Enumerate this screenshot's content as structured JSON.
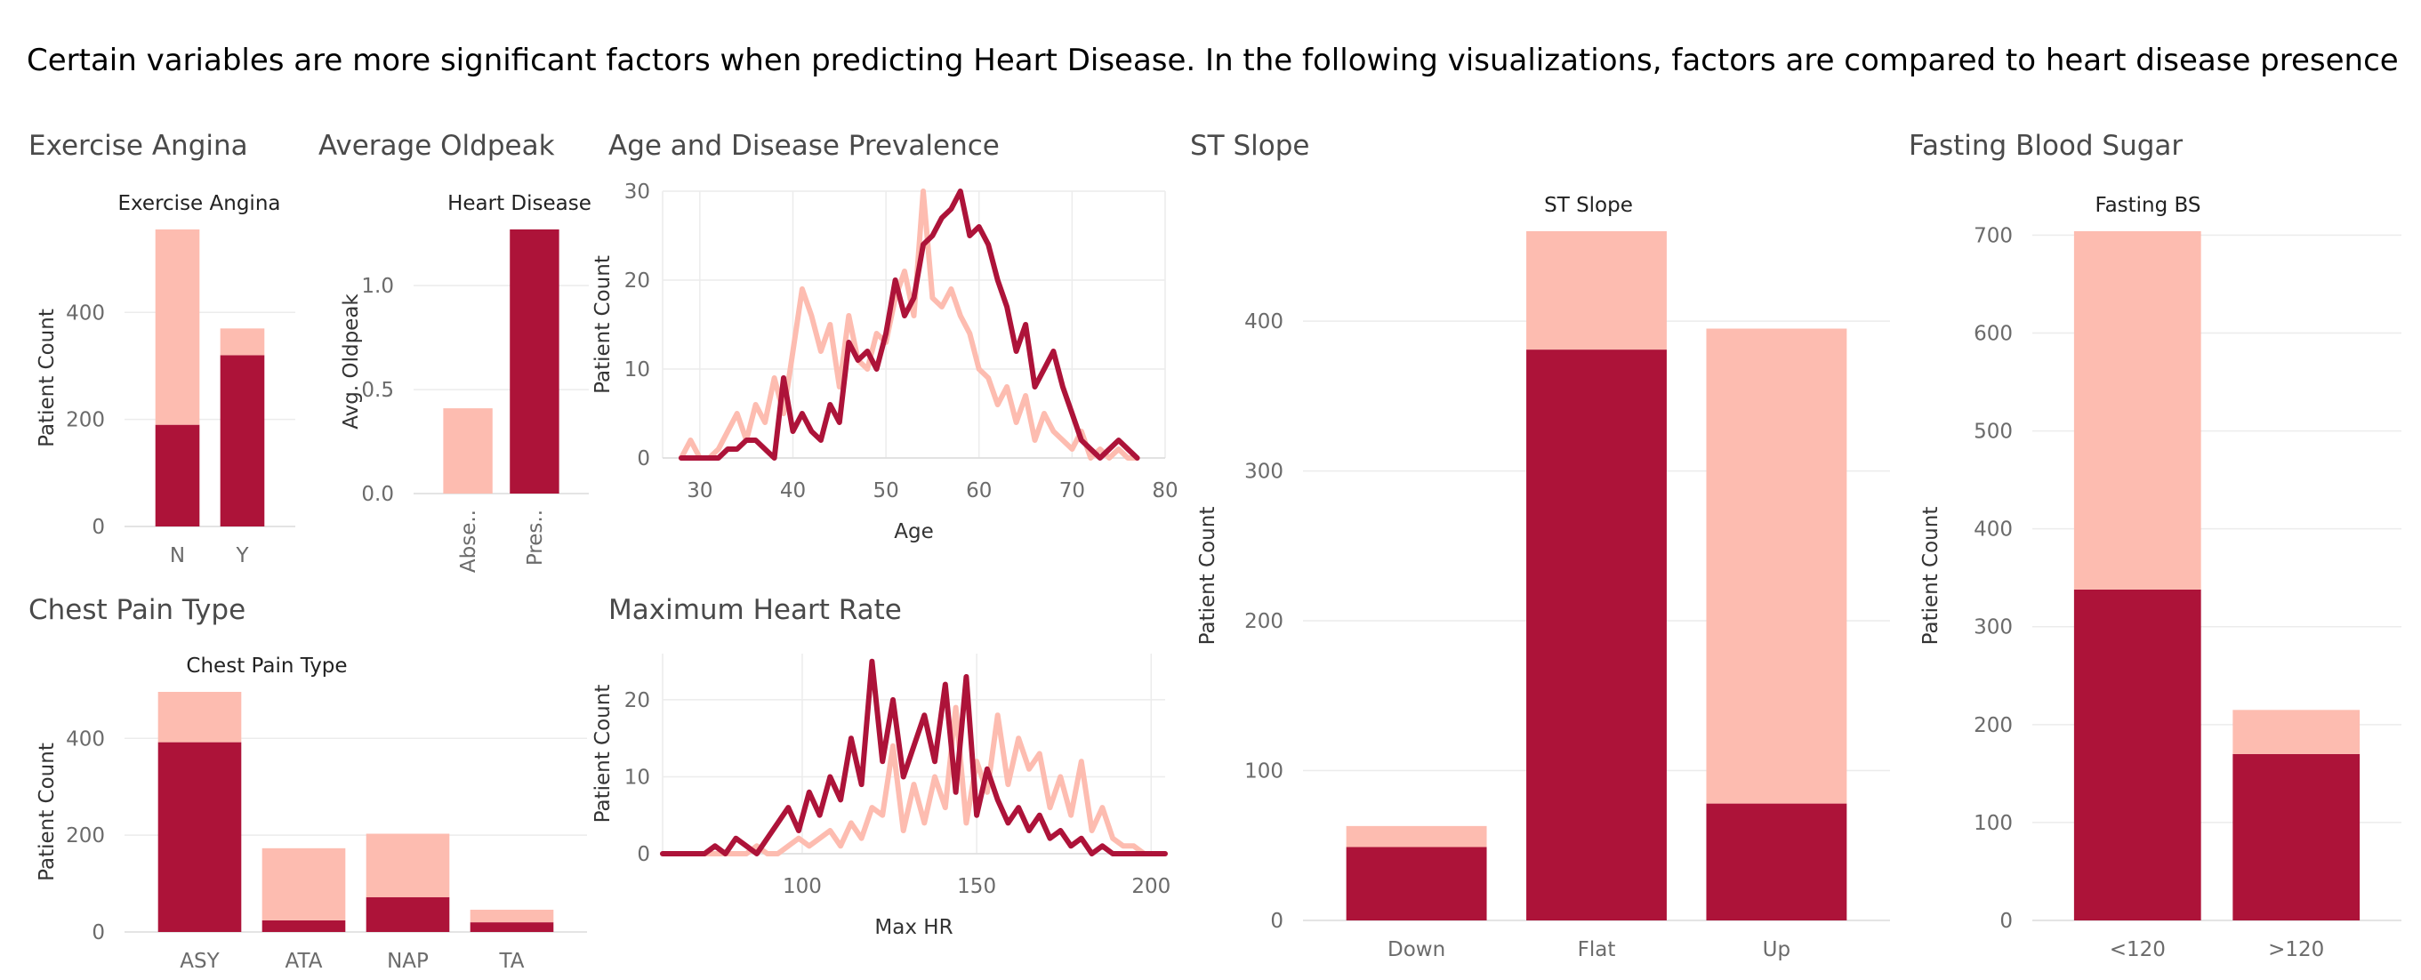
{
  "headline": "Certain variables are more significant factors when predicting Heart Disease.  In the following visualizations, factors are compared to heart disease presence in the patient dat..",
  "colors": {
    "presence": "#ad1339",
    "absence": "#fdbcb0"
  },
  "chart_data": [
    {
      "id": "exercise_angina",
      "type": "bar",
      "stacked": true,
      "sheet_title": "Exercise Angina",
      "header": "Exercise Angina",
      "ylabel": "Patient Count",
      "xlabel": "",
      "categories": [
        "N",
        "Y"
      ],
      "series": [
        {
          "key": "presence",
          "values": [
            190,
            320
          ]
        },
        {
          "key": "absence",
          "values": [
            365,
            50
          ]
        }
      ],
      "ylim": [
        0,
        555
      ],
      "yticks": [
        0,
        200,
        400
      ]
    },
    {
      "id": "average_oldpeak",
      "type": "bar",
      "sheet_title": "Average Oldpeak",
      "header": "Heart Disease",
      "ylabel": "Avg. Oldpeak",
      "xlabel": "",
      "categories": [
        "Abse..",
        "Pres.."
      ],
      "values": [
        0.41,
        1.27
      ],
      "bar_colors": [
        "absence",
        "presence"
      ],
      "ylim": [
        0,
        1.27
      ],
      "yticks": [
        0.0,
        0.5,
        1.0
      ]
    },
    {
      "id": "age",
      "type": "line",
      "sheet_title": "Age and Disease Prevalence",
      "header": "",
      "xlabel": "Age",
      "ylabel": "Patient Count",
      "xlim": [
        26,
        80
      ],
      "ylim": [
        0,
        30
      ],
      "xticks": [
        30,
        40,
        50,
        60,
        70,
        80
      ],
      "yticks": [
        0,
        10,
        20,
        30
      ],
      "series": [
        {
          "key": "presence",
          "x": [
            28,
            29,
            30,
            31,
            32,
            33,
            34,
            35,
            36,
            37,
            38,
            39,
            40,
            41,
            42,
            43,
            44,
            45,
            46,
            47,
            48,
            49,
            50,
            51,
            52,
            53,
            54,
            55,
            56,
            57,
            58,
            59,
            60,
            61,
            62,
            63,
            64,
            65,
            66,
            67,
            68,
            69,
            70,
            71,
            72,
            73,
            74,
            75,
            76,
            77
          ],
          "y": [
            0,
            0,
            0,
            0,
            0,
            1,
            1,
            2,
            2,
            1,
            0,
            9,
            3,
            5,
            3,
            2,
            6,
            4,
            13,
            11,
            12,
            10,
            14,
            20,
            16,
            18,
            24,
            25,
            27,
            28,
            30,
            25,
            26,
            24,
            20,
            17,
            12,
            15,
            8,
            10,
            12,
            8,
            5,
            2,
            1,
            0,
            1,
            2,
            1,
            0
          ]
        },
        {
          "key": "absence",
          "x": [
            28,
            29,
            30,
            31,
            32,
            33,
            34,
            35,
            36,
            37,
            38,
            39,
            40,
            41,
            42,
            43,
            44,
            45,
            46,
            47,
            48,
            49,
            50,
            51,
            52,
            53,
            54,
            55,
            56,
            57,
            58,
            59,
            60,
            61,
            62,
            63,
            64,
            65,
            66,
            67,
            68,
            69,
            70,
            71,
            72,
            73,
            74,
            75,
            76,
            77
          ],
          "y": [
            0,
            2,
            0,
            0,
            1,
            3,
            5,
            2,
            6,
            4,
            9,
            5,
            12,
            19,
            16,
            12,
            15,
            8,
            16,
            11,
            10,
            14,
            13,
            18,
            21,
            16,
            30,
            18,
            17,
            19,
            16,
            14,
            10,
            9,
            6,
            8,
            4,
            7,
            2,
            5,
            3,
            2,
            1,
            3,
            0,
            1,
            0,
            1,
            0,
            0
          ]
        }
      ]
    },
    {
      "id": "st_slope",
      "type": "bar",
      "stacked": true,
      "sheet_title": "ST Slope",
      "header": "ST Slope",
      "ylabel": "Patient Count",
      "xlabel": "",
      "categories": [
        "Down",
        "Flat",
        "Up"
      ],
      "series": [
        {
          "key": "presence",
          "values": [
            49,
            381,
            78
          ]
        },
        {
          "key": "absence",
          "values": [
            14,
            79,
            317
          ]
        }
      ],
      "ylim": [
        0,
        460
      ],
      "yticks": [
        0,
        100,
        200,
        300,
        400
      ]
    },
    {
      "id": "fasting_bs",
      "type": "bar",
      "stacked": true,
      "sheet_title": "Fasting Blood Sugar",
      "header": "Fasting BS",
      "ylabel": "Patient Count",
      "xlabel": "",
      "categories": [
        "<120",
        ">120"
      ],
      "series": [
        {
          "key": "presence",
          "values": [
            338,
            170
          ]
        },
        {
          "key": "absence",
          "values": [
            366,
            45
          ]
        }
      ],
      "ylim": [
        0,
        704
      ],
      "yticks": [
        0,
        100,
        200,
        300,
        400,
        500,
        600,
        700
      ]
    },
    {
      "id": "chest_pain",
      "type": "bar",
      "stacked": true,
      "sheet_title": "Chest Pain Type",
      "header": "Chest Pain Type",
      "ylabel": "Patient Count",
      "xlabel": "",
      "categories": [
        "ASY",
        "ATA",
        "NAP",
        "TA"
      ],
      "series": [
        {
          "key": "presence",
          "values": [
            392,
            24,
            72,
            20
          ]
        },
        {
          "key": "absence",
          "values": [
            104,
            149,
            131,
            26
          ]
        }
      ],
      "ylim": [
        0,
        496
      ],
      "yticks": [
        0,
        200,
        400
      ]
    },
    {
      "id": "max_hr",
      "type": "line",
      "sheet_title": "Maximum Heart Rate",
      "header": "",
      "xlabel": "Max HR",
      "ylabel": "Patient Count",
      "xlim": [
        60,
        204
      ],
      "ylim": [
        0,
        26
      ],
      "xticks": [
        100,
        150,
        200
      ],
      "yticks": [
        0,
        10,
        20
      ],
      "series": [
        {
          "key": "presence",
          "x": [
            60,
            63,
            66,
            69,
            72,
            75,
            78,
            81,
            84,
            87,
            90,
            93,
            96,
            99,
            102,
            105,
            108,
            111,
            114,
            117,
            120,
            123,
            126,
            129,
            132,
            135,
            138,
            141,
            144,
            147,
            150,
            153,
            156,
            159,
            162,
            165,
            168,
            171,
            174,
            177,
            180,
            183,
            186,
            189,
            192,
            195,
            198,
            201,
            204
          ],
          "y": [
            0,
            0,
            0,
            0,
            0,
            1,
            0,
            2,
            1,
            0,
            2,
            4,
            6,
            3,
            8,
            5,
            10,
            7,
            15,
            9,
            25,
            12,
            20,
            10,
            14,
            18,
            12,
            22,
            8,
            23,
            5,
            11,
            7,
            4,
            6,
            3,
            5,
            2,
            3,
            1,
            2,
            0,
            1,
            0,
            0,
            0,
            0,
            0,
            0
          ]
        },
        {
          "key": "absence",
          "x": [
            60,
            63,
            66,
            69,
            72,
            75,
            78,
            81,
            84,
            87,
            90,
            93,
            96,
            99,
            102,
            105,
            108,
            111,
            114,
            117,
            120,
            123,
            126,
            129,
            132,
            135,
            138,
            141,
            144,
            147,
            150,
            153,
            156,
            159,
            162,
            165,
            168,
            171,
            174,
            177,
            180,
            183,
            186,
            189,
            192,
            195,
            198,
            201,
            204
          ],
          "y": [
            0,
            0,
            0,
            0,
            0,
            0,
            0,
            0,
            0,
            1,
            0,
            0,
            1,
            2,
            1,
            2,
            3,
            1,
            4,
            2,
            6,
            5,
            14,
            3,
            9,
            4,
            10,
            6,
            19,
            4,
            12,
            8,
            18,
            9,
            15,
            11,
            13,
            6,
            10,
            5,
            12,
            3,
            6,
            2,
            1,
            1,
            0,
            0,
            0
          ]
        }
      ]
    }
  ]
}
